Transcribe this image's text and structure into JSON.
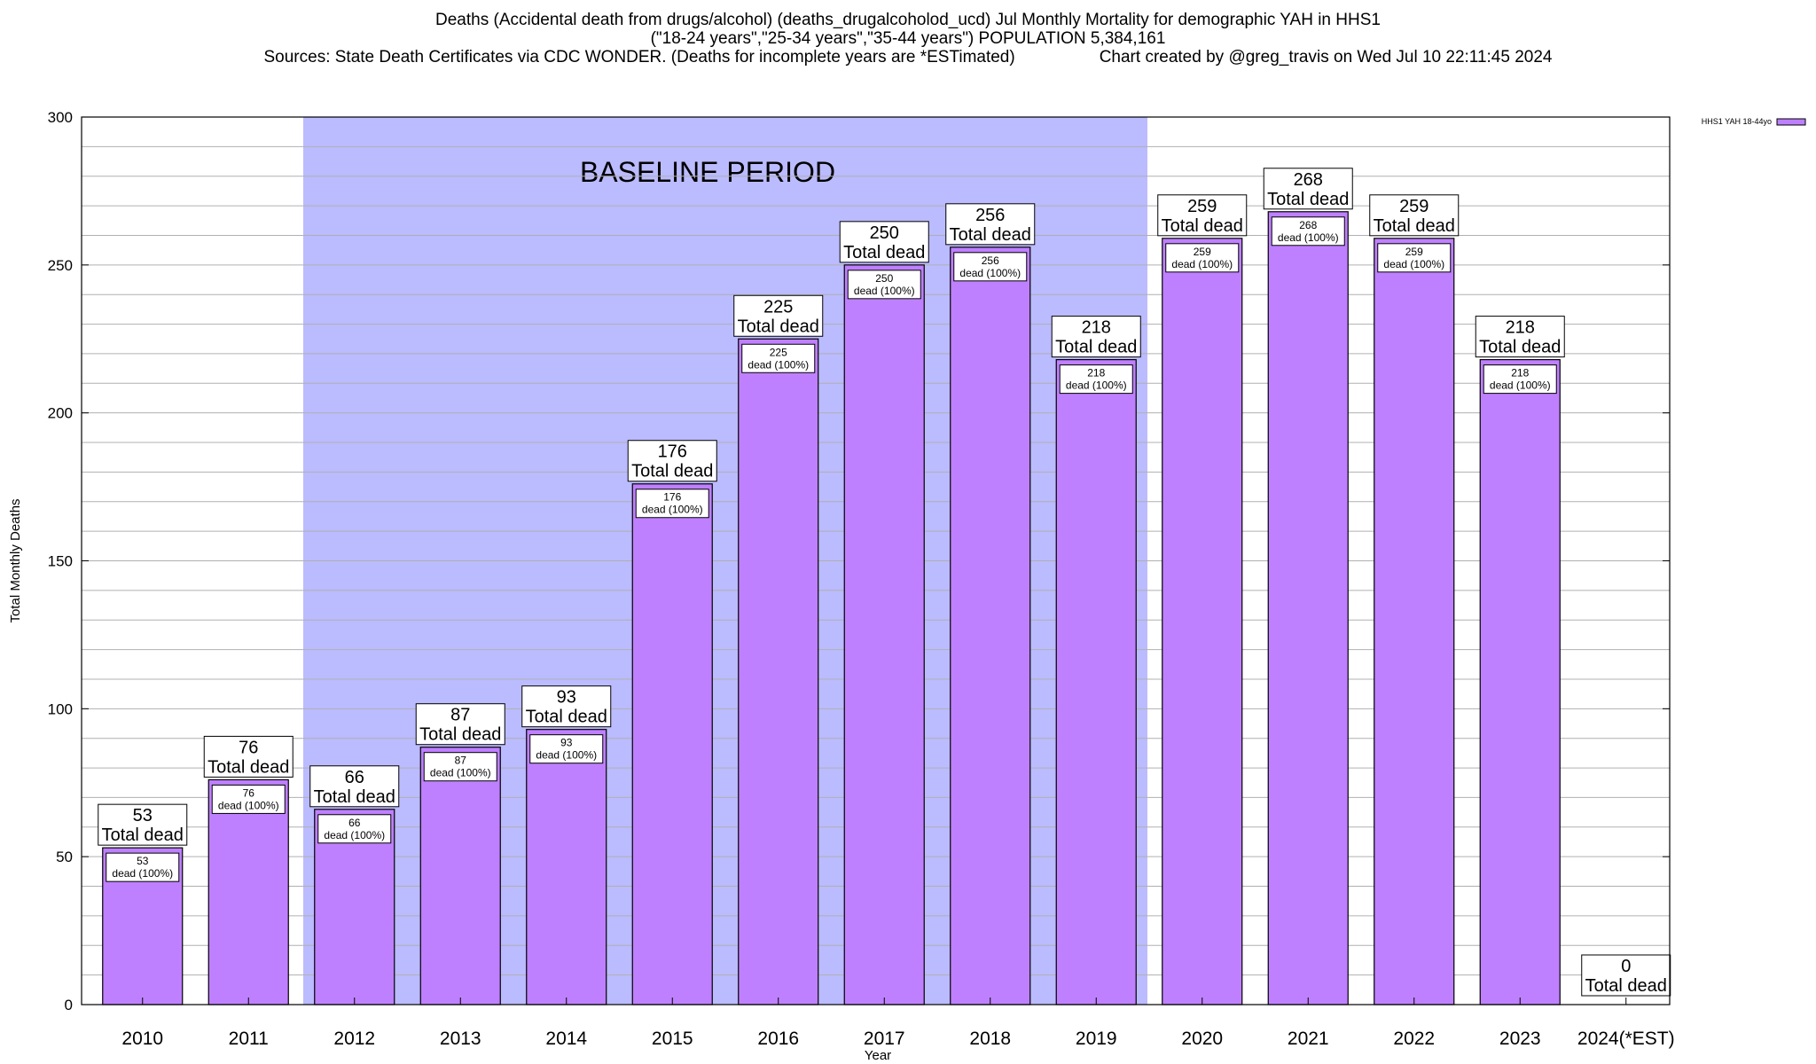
{
  "header": {
    "title_line1": "Deaths (Accidental death from drugs/alcohol) (deaths_drugalcoholod_ucd) Jul Monthly Mortality for demographic YAH in HHS1",
    "title_line2": "(\"18-24 years\",\"25-34 years\",\"35-44 years\") POPULATION 5,384,161",
    "sources": "Sources: State Death Certificates via CDC WONDER. (Deaths for incomplete years are *ESTimated)",
    "credit": "Chart created by @greg_travis on Wed Jul 10 22:11:45 2024"
  },
  "chart_data": {
    "type": "bar",
    "xlabel": "Year",
    "ylabel": "Total Monthly Deaths",
    "ylim": [
      0,
      300
    ],
    "yticks": [
      0,
      50,
      100,
      150,
      200,
      250,
      300
    ],
    "categories": [
      "2010",
      "2011",
      "2012",
      "2013",
      "2014",
      "2015",
      "2016",
      "2017",
      "2018",
      "2019",
      "2020",
      "2021",
      "2022",
      "2023",
      "2024(*EST)"
    ],
    "series": [
      {
        "name": "HHS1 YAH 18-44yo",
        "values": [
          53,
          76,
          66,
          87,
          93,
          176,
          225,
          250,
          256,
          218,
          259,
          268,
          259,
          218,
          0
        ]
      }
    ],
    "outer_labels": [
      "53",
      "76",
      "66",
      "87",
      "93",
      "176",
      "225",
      "250",
      "256",
      "218",
      "259",
      "268",
      "259",
      "218",
      "0"
    ],
    "outer_label_suffix": "Total dead",
    "inner_labels": [
      "53",
      "76",
      "66",
      "87",
      "93",
      "176",
      "225",
      "250",
      "256",
      "218",
      "259",
      "268",
      "259",
      "218",
      ""
    ],
    "inner_label_suffix": "dead (100%)",
    "baseline_period": {
      "label": "BASELINE PERIOD",
      "start": "2012",
      "end": "2019"
    },
    "grid": true,
    "legend_position": "top-right",
    "colors": {
      "bar_fill": "#bf80ff",
      "bar_stroke": "#000000",
      "baseline_fill": "#bbbbff",
      "grid": "#b0b0b0"
    }
  }
}
